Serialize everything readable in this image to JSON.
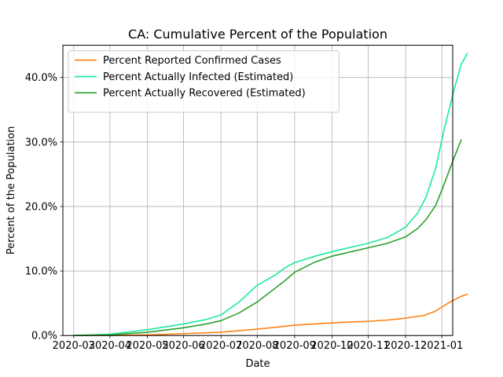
{
  "chart_data": {
    "type": "line",
    "title": "CA: Cumulative Percent of the Population",
    "xlabel": "Date",
    "ylabel": "Percent of the Population",
    "ylim": [
      0,
      45
    ],
    "yticks": [
      0,
      10,
      20,
      30,
      40
    ],
    "ytick_labels": [
      "0.0%",
      "10.0%",
      "20.0%",
      "30.0%",
      "40.0%"
    ],
    "xlim": [
      -9,
      314
    ],
    "xticks": [
      0,
      30,
      61,
      91,
      122,
      152,
      183,
      214,
      244,
      275,
      305
    ],
    "xtick_labels": [
      "2020-03",
      "2020-04",
      "2020-05",
      "2020-06",
      "2020-07",
      "2020-08",
      "2020-09",
      "2020-10",
      "2020-11",
      "2020-12",
      "2021-01"
    ],
    "x_units": "days since 2020-03-01",
    "grid": true,
    "legend_position": "upper-left",
    "series": [
      {
        "name": "Percent Reported Confirmed Cases",
        "color": "#ff7f0e",
        "points": [
          [
            0,
            0
          ],
          [
            30,
            0.02
          ],
          [
            61,
            0.1
          ],
          [
            91,
            0.3
          ],
          [
            122,
            0.5
          ],
          [
            152,
            1.0
          ],
          [
            168,
            1.3
          ],
          [
            183,
            1.6
          ],
          [
            200,
            1.8
          ],
          [
            214,
            1.95
          ],
          [
            230,
            2.1
          ],
          [
            244,
            2.2
          ],
          [
            260,
            2.4
          ],
          [
            275,
            2.7
          ],
          [
            290,
            3.1
          ],
          [
            300,
            3.8
          ],
          [
            310,
            5.0
          ],
          [
            320,
            6.0
          ],
          [
            326,
            6.4
          ]
        ]
      },
      {
        "name": "Percent Actually Infected (Estimated)",
        "color": "#1de9a0",
        "points": [
          [
            0,
            0
          ],
          [
            30,
            0.2
          ],
          [
            61,
            0.9
          ],
          [
            91,
            1.8
          ],
          [
            110,
            2.5
          ],
          [
            122,
            3.2
          ],
          [
            137,
            5.2
          ],
          [
            152,
            7.8
          ],
          [
            168,
            9.5
          ],
          [
            175,
            10.5
          ],
          [
            183,
            11.3
          ],
          [
            200,
            12.3
          ],
          [
            214,
            13.0
          ],
          [
            230,
            13.7
          ],
          [
            244,
            14.3
          ],
          [
            260,
            15.2
          ],
          [
            275,
            16.8
          ],
          [
            285,
            19.0
          ],
          [
            292,
            21.5
          ],
          [
            300,
            26.0
          ],
          [
            307,
            32.0
          ],
          [
            315,
            38.0
          ],
          [
            321,
            42.0
          ],
          [
            326,
            43.7
          ]
        ]
      },
      {
        "name": "Percent Actually Recovered (Estimated)",
        "color": "#2ca02c",
        "points": [
          [
            0,
            0
          ],
          [
            30,
            0.1
          ],
          [
            61,
            0.5
          ],
          [
            91,
            1.2
          ],
          [
            110,
            1.8
          ],
          [
            122,
            2.3
          ],
          [
            137,
            3.5
          ],
          [
            152,
            5.2
          ],
          [
            168,
            7.5
          ],
          [
            175,
            8.5
          ],
          [
            183,
            9.8
          ],
          [
            200,
            11.4
          ],
          [
            214,
            12.3
          ],
          [
            230,
            13.0
          ],
          [
            244,
            13.6
          ],
          [
            260,
            14.3
          ],
          [
            275,
            15.3
          ],
          [
            285,
            16.6
          ],
          [
            292,
            18.0
          ],
          [
            300,
            20.2
          ],
          [
            307,
            23.5
          ],
          [
            315,
            27.5
          ],
          [
            321,
            30.3
          ]
        ]
      }
    ]
  }
}
